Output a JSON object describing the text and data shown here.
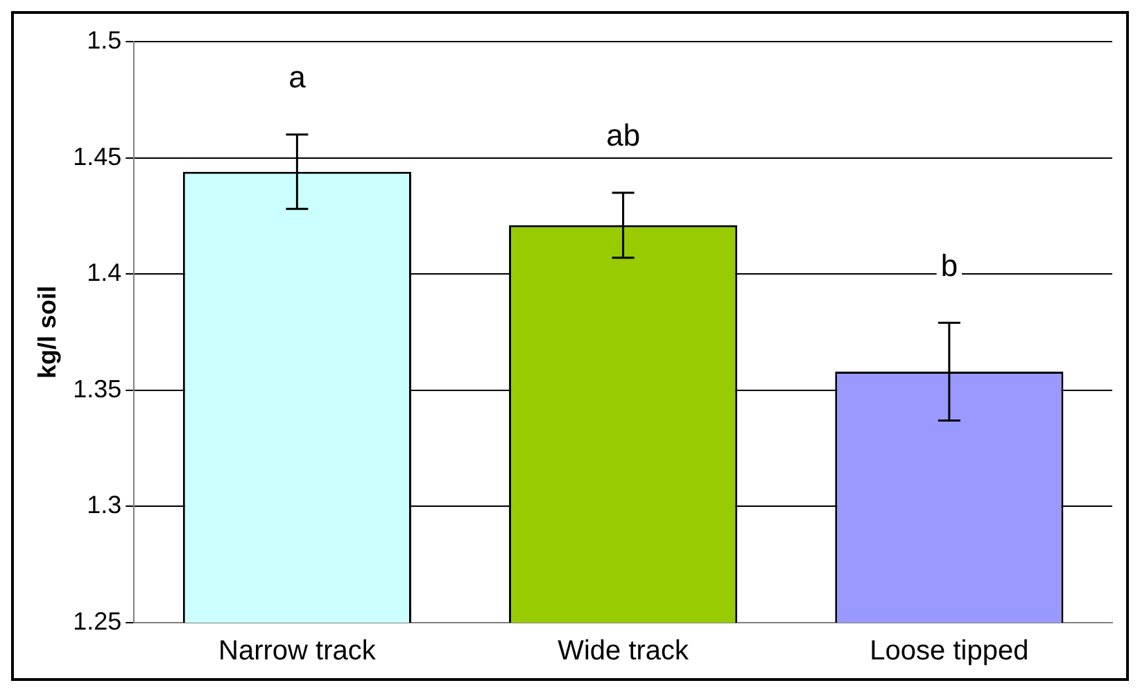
{
  "chart_data": {
    "type": "bar",
    "ylabel": "kg/l soil",
    "categories": [
      "Narrow track",
      "Wide track",
      "Loose tipped"
    ],
    "values": [
      1.444,
      1.421,
      1.358
    ],
    "colors": [
      "#ccffff",
      "#99cc00",
      "#9999ff"
    ],
    "errors": [
      0.016,
      0.014,
      0.021
    ],
    "ylim": [
      1.25,
      1.5
    ],
    "yticks": [
      1.25,
      1.3,
      1.35,
      1.4,
      1.45,
      1.5
    ],
    "grid": "y",
    "legend": false,
    "annotations": [
      "a",
      "ab",
      "b"
    ]
  }
}
